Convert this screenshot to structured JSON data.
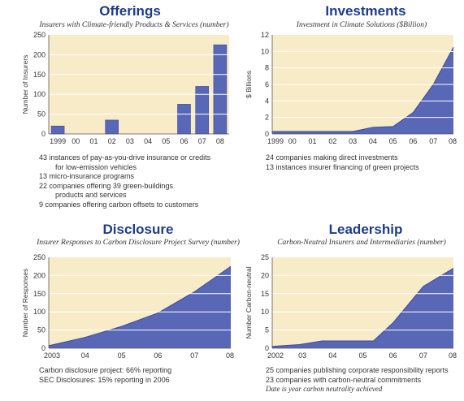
{
  "colors": {
    "plot_bg": "#f8ebc8",
    "fill": "#5967b7",
    "stroke": "#3c4a9e",
    "gridline": "#ffffff",
    "title": "#1f3c8c"
  },
  "panels": {
    "offerings": {
      "title": "Offerings",
      "subtitle": "Insurers with Climate-friendly Products & Services (number)",
      "notes": [
        {
          "lead": "43 instances of pay-as-you-drive insurance or credits",
          "cont": "for low-emission vehicles"
        },
        {
          "lead": "13 micro-insurance programs",
          "cont": ""
        },
        {
          "lead": "22 companies offering 39 green-buildings",
          "cont": "products and services"
        },
        {
          "lead": " 9 companies offering carbon offsets to customers",
          "cont": ""
        }
      ]
    },
    "investments": {
      "title": "Investments",
      "subtitle": "Investment in Climate Solutions ($Billion)",
      "notes": [
        {
          "lead": "24 companies making direct investments",
          "cont": ""
        },
        {
          "lead": "13 instances insurer financing of green projects",
          "cont": ""
        }
      ]
    },
    "disclosure": {
      "title": "Disclosure",
      "subtitle": "Insurer Responses to Carbon Disclosure Project Survey (number)",
      "notes": [
        {
          "lead": "Carbon disclosure project: 66% reporting",
          "cont": ""
        },
        {
          "lead": "SEC Disclosures: 15% reporting in 2006",
          "cont": ""
        }
      ]
    },
    "leadership": {
      "title": "Leadership",
      "subtitle": "Carbon-Neutral Insurers and Intermediaries (number)",
      "notes": [
        {
          "lead": "25 companies publishing corporate responsibility reports",
          "cont": ""
        },
        {
          "lead": "23 companies with carbon-neutral commitments",
          "cont": ""
        },
        {
          "lead": "Date is year carbon neutrality achieved",
          "cont": "",
          "italic": true
        }
      ]
    }
  },
  "chart_data": [
    {
      "id": "offerings",
      "type": "bar",
      "categories": [
        "1999",
        "00",
        "01",
        "02",
        "03",
        "04",
        "05",
        "06",
        "07",
        "08"
      ],
      "values": [
        20,
        0,
        0,
        35,
        0,
        0,
        0,
        75,
        120,
        225
      ],
      "ylabel": "Number of Insurers",
      "ylim": [
        0,
        250
      ],
      "yticks": [
        0,
        50,
        100,
        150,
        200,
        250
      ],
      "grid": true
    },
    {
      "id": "investments",
      "type": "area",
      "categories": [
        "1999",
        "00",
        "01",
        "02",
        "03",
        "04",
        "05",
        "06",
        "07",
        "08"
      ],
      "values": [
        0.3,
        0.3,
        0.3,
        0.3,
        0.3,
        0.8,
        0.9,
        2.6,
        6.0,
        10.5
      ],
      "ylabel": "$ Billions",
      "ylim": [
        0,
        12
      ],
      "yticks": [
        0,
        2,
        4,
        6,
        8,
        10,
        12
      ],
      "grid": true
    },
    {
      "id": "disclosure",
      "type": "area",
      "categories": [
        "2003",
        "04",
        "05",
        "06",
        "07",
        "08"
      ],
      "values": [
        7,
        30,
        60,
        97,
        155,
        225
      ],
      "ylabel": "Number of Responses",
      "ylim": [
        0,
        250
      ],
      "yticks": [
        0,
        50,
        100,
        150,
        200,
        250
      ],
      "grid": true
    },
    {
      "id": "leadership",
      "type": "area",
      "categories": [
        "2002",
        "03",
        "04",
        "05",
        "06",
        "07",
        "08"
      ],
      "x": [
        0,
        0.9,
        1.65,
        2.45,
        3.35,
        4.0,
        5.0,
        6.0
      ],
      "values": [
        0.5,
        1,
        2,
        2,
        2,
        7,
        17,
        22
      ],
      "ylabel": "Number Carbon-neutral",
      "ylim": [
        0,
        25
      ],
      "yticks": [
        0,
        5,
        10,
        15,
        20,
        25
      ],
      "grid": true
    }
  ]
}
